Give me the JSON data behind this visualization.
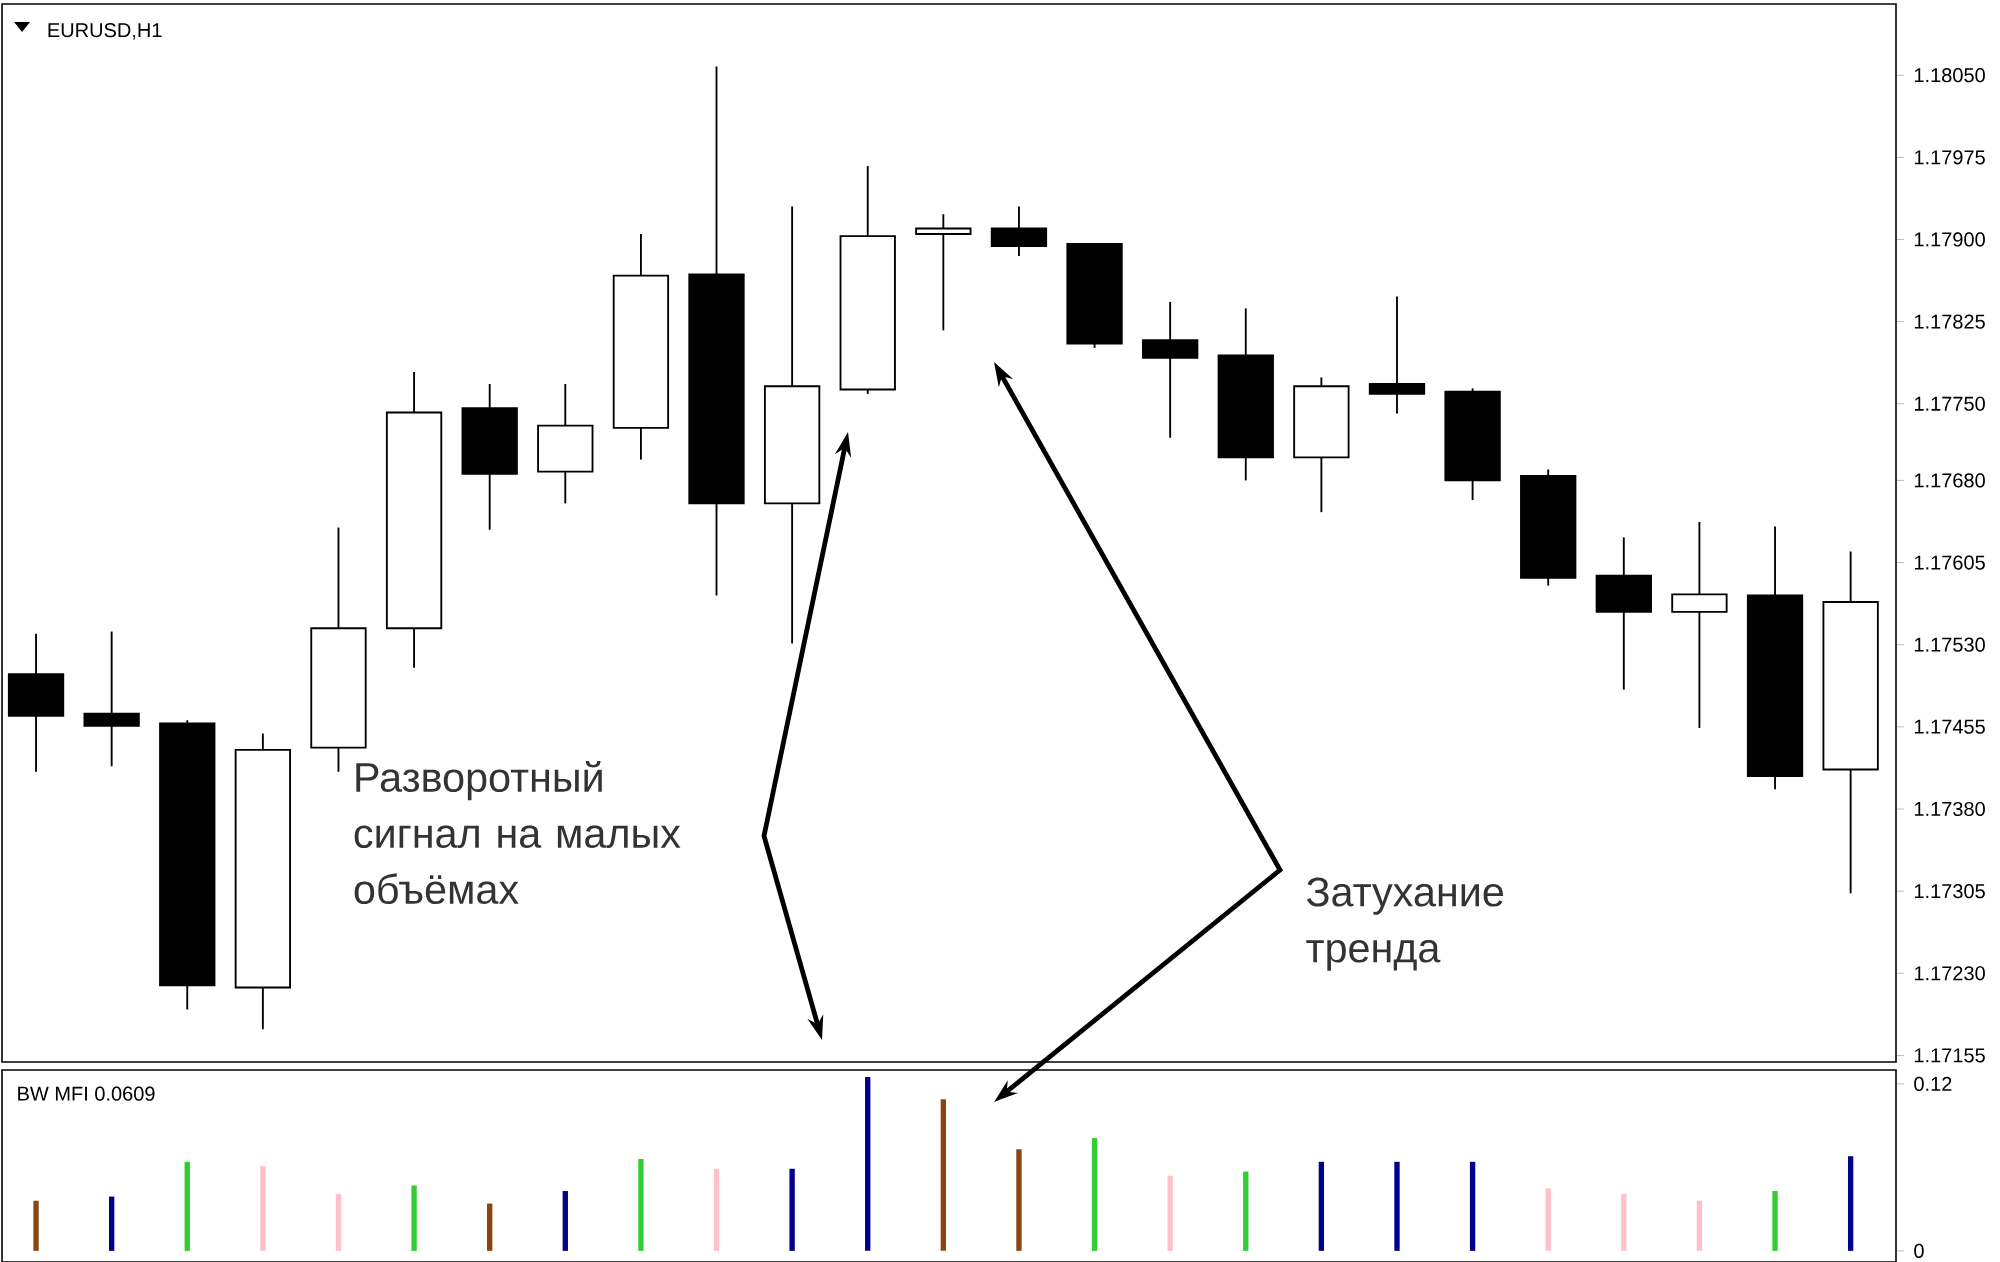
{
  "chart_data": [
    {
      "type": "candlestick",
      "title": "EURUSD,H1",
      "categories": [
        null,
        null,
        null,
        null,
        null,
        null,
        null,
        null,
        null,
        null,
        null,
        null,
        null,
        null,
        null,
        null,
        null,
        null,
        null,
        null,
        null,
        null,
        null,
        null,
        null
      ],
      "ohlc": [
        [
          1.17503,
          1.1754,
          1.17414,
          1.17465
        ],
        [
          1.17467,
          1.17542,
          1.17419,
          1.17456
        ],
        [
          1.17458,
          1.17461,
          1.17197,
          1.17219
        ],
        [
          1.17217,
          1.17449,
          1.17179,
          1.17434
        ],
        [
          1.17436,
          1.17637,
          1.17414,
          1.17545
        ],
        [
          1.17545,
          1.17779,
          1.17509,
          1.17742
        ],
        [
          1.17746,
          1.17768,
          1.17635,
          1.17686
        ],
        [
          1.17688,
          1.17768,
          1.17659,
          1.1773
        ],
        [
          1.17728,
          1.17905,
          1.17699,
          1.17867
        ],
        [
          1.17868,
          1.18058,
          1.17575,
          1.17659
        ],
        [
          1.17659,
          1.1793,
          1.17531,
          1.17766
        ],
        [
          1.17763,
          1.17967,
          1.17759,
          1.17903
        ],
        [
          1.17905,
          1.17923,
          1.17817,
          1.1791
        ],
        [
          1.1791,
          1.1793,
          1.17885,
          1.17894
        ],
        [
          1.17896,
          1.17896,
          1.17801,
          1.17805
        ],
        [
          1.17808,
          1.17843,
          1.17719,
          1.17792
        ],
        [
          1.17794,
          1.17837,
          1.1768,
          1.17701
        ],
        [
          1.17701,
          1.17774,
          1.17651,
          1.17766
        ],
        [
          1.17768,
          1.17848,
          1.17741,
          1.17759
        ],
        [
          1.17761,
          1.17764,
          1.17662,
          1.1768
        ],
        [
          1.17684,
          1.1769,
          1.17584,
          1.17591
        ],
        [
          1.17593,
          1.17628,
          1.17489,
          1.1756
        ],
        [
          1.1756,
          1.17642,
          1.17454,
          1.17576
        ],
        [
          1.17575,
          1.17638,
          1.17398,
          1.1741
        ],
        [
          1.17416,
          1.17615,
          1.17303,
          1.17569
        ]
      ],
      "ylim": [
        1.17149,
        1.18115
      ],
      "yticks": [
        {
          "value": 1.1805,
          "label": "1.18050"
        },
        {
          "value": 1.17975,
          "label": "1.17975"
        },
        {
          "value": 1.179,
          "label": "1.17900"
        },
        {
          "value": 1.17825,
          "label": "1.17825"
        },
        {
          "value": 1.1775,
          "label": "1.17750"
        },
        {
          "value": 1.1768,
          "label": "1.17680"
        },
        {
          "value": 1.17605,
          "label": "1.17605"
        },
        {
          "value": 1.1753,
          "label": "1.17530"
        },
        {
          "value": 1.17455,
          "label": "1.17455"
        },
        {
          "value": 1.1738,
          "label": "1.17380"
        },
        {
          "value": 1.17305,
          "label": "1.17305"
        },
        {
          "value": 1.1723,
          "label": "1.17230"
        },
        {
          "value": 1.17155,
          "label": "1.17155"
        }
      ],
      "annotations": [
        "Разворотный сигнал на малых объёмах",
        "Затухание тренда"
      ]
    },
    {
      "type": "bar",
      "title": "BW MFI 0.0609",
      "categories": [
        null,
        null,
        null,
        null,
        null,
        null,
        null,
        null,
        null,
        null,
        null,
        null,
        null,
        null,
        null,
        null,
        null,
        null,
        null,
        null,
        null,
        null,
        null,
        null,
        null
      ],
      "values": [
        0.036,
        0.039,
        0.064,
        0.061,
        0.041,
        0.047,
        0.034,
        0.043,
        0.066,
        0.059,
        0.059,
        0.125,
        0.109,
        0.073,
        0.081,
        0.054,
        0.057,
        0.064,
        0.064,
        0.064,
        0.045,
        0.041,
        0.036,
        0.043,
        0.068
      ],
      "colors": [
        "#8b4513",
        "#00008b",
        "#32cd32",
        "#ffc0cb",
        "#ffc0cb",
        "#32cd32",
        "#8b4513",
        "#00008b",
        "#32cd32",
        "#ffc0cb",
        "#00008b",
        "#00008b",
        "#8b4513",
        "#8b4513",
        "#32cd32",
        "#ffc0cb",
        "#32cd32",
        "#00008b",
        "#00008b",
        "#00008b",
        "#ffc0cb",
        "#ffc0cb",
        "#ffc0cb",
        "#32cd32",
        "#00008b"
      ],
      "ylim": [
        -0.008,
        0.13
      ],
      "yticks": [
        0,
        0.12
      ]
    }
  ]
}
